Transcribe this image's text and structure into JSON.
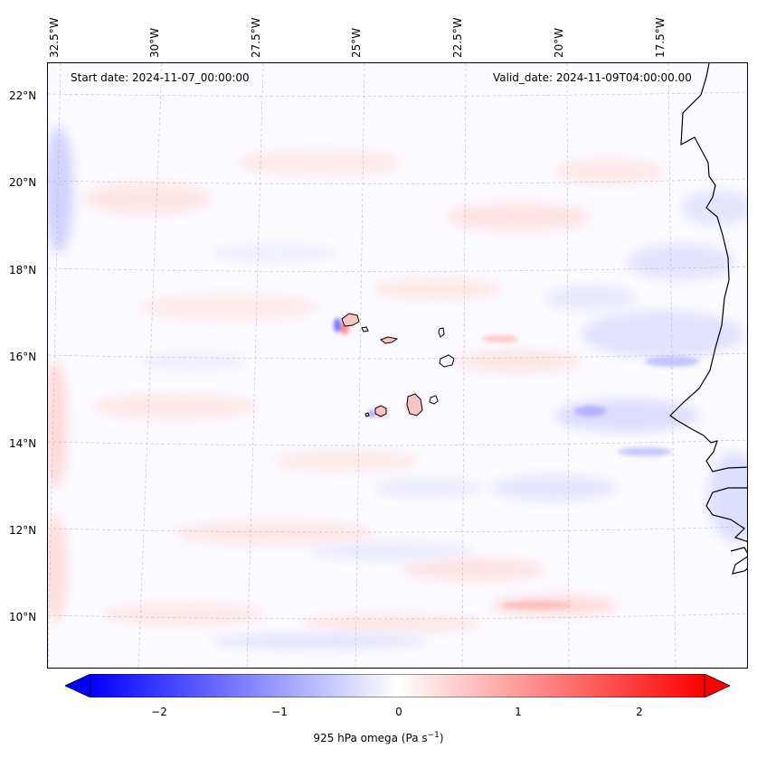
{
  "header": {
    "start_date": "Start date: 2024-11-07_00:00:00",
    "valid_date": "Valid_date: 2024-11-09T04:00:00.00"
  },
  "longitude_labels": [
    "32.5°W",
    "30°W",
    "27.5°W",
    "25°W",
    "22.5°W",
    "20°W",
    "17.5°W"
  ],
  "latitude_labels": [
    "22°N",
    "20°N",
    "18°N",
    "16°N",
    "14°N",
    "12°N",
    "10°N"
  ],
  "colorbar": {
    "ticks": [
      "−2",
      "−1",
      "0",
      "1",
      "2"
    ],
    "label": "925 hPa omega (Pa s",
    "label_sup": "−1",
    "label_end": ")",
    "min_color": "#0000ff",
    "mid_color": "#ffffff",
    "max_color": "#ff0000"
  },
  "colors": {
    "coastline": "#000000",
    "gridline": "#bbbbbb",
    "ascent_blue": "#d6d6ff",
    "descent_red": "#ffd6d6"
  }
}
